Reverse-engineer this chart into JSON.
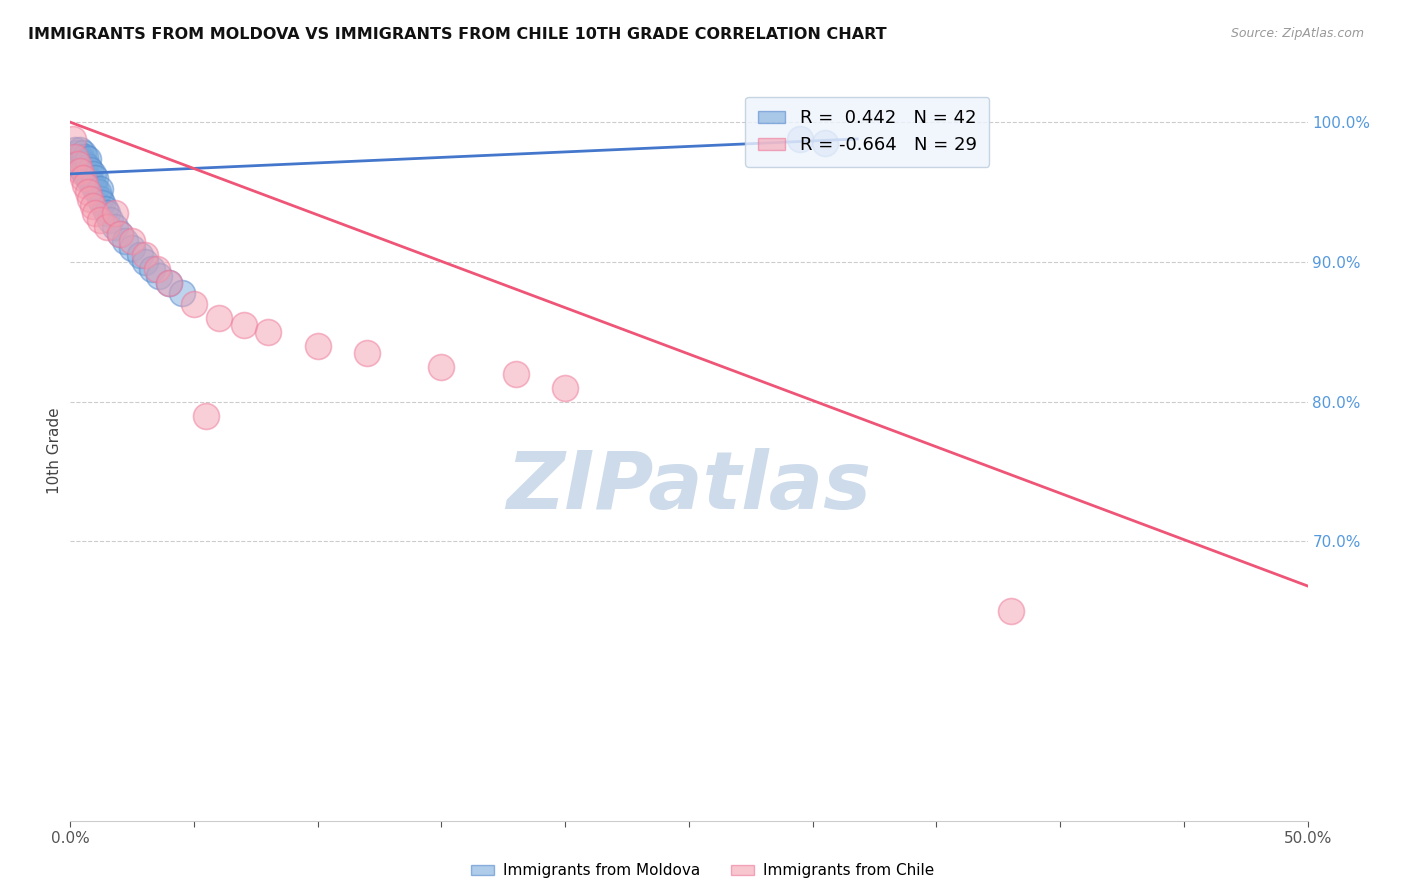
{
  "title": "IMMIGRANTS FROM MOLDOVA VS IMMIGRANTS FROM CHILE 10TH GRADE CORRELATION CHART",
  "source": "Source: ZipAtlas.com",
  "ylabel": "10th Grade",
  "xlim": [
    0.0,
    0.5
  ],
  "ylim": [
    0.5,
    1.03
  ],
  "xticks": [
    0.0,
    0.05,
    0.1,
    0.15,
    0.2,
    0.25,
    0.3,
    0.35,
    0.4,
    0.45,
    0.5
  ],
  "xtick_labels": [
    "0.0%",
    "",
    "",
    "",
    "",
    "",
    "",
    "",
    "",
    "",
    "50.0%"
  ],
  "yticks_right": [
    1.0,
    0.9,
    0.8,
    0.7
  ],
  "ytick_right_labels": [
    "100.0%",
    "90.0%",
    "80.0%",
    "70.0%"
  ],
  "moldova_color": "#7aabdc",
  "chile_color": "#f4a0b0",
  "moldova_edge_color": "#5588cc",
  "chile_edge_color": "#ee7799",
  "moldova_line_color": "#4477cc",
  "chile_line_color": "#ee5577",
  "moldova_R": 0.442,
  "moldova_N": 42,
  "chile_R": -0.664,
  "chile_N": 29,
  "watermark": "ZIPatlas",
  "watermark_color": "#c5d5e8",
  "legend_box_color": "#eef3fc",
  "legend_edge_color": "#bbccdd",
  "moldova_scatter_x": [
    0.001,
    0.002,
    0.002,
    0.003,
    0.003,
    0.004,
    0.004,
    0.004,
    0.005,
    0.005,
    0.005,
    0.006,
    0.006,
    0.006,
    0.007,
    0.007,
    0.007,
    0.008,
    0.008,
    0.009,
    0.009,
    0.01,
    0.01,
    0.011,
    0.012,
    0.012,
    0.013,
    0.014,
    0.015,
    0.016,
    0.018,
    0.02,
    0.022,
    0.025,
    0.028,
    0.03,
    0.033,
    0.036,
    0.04,
    0.045,
    0.295,
    0.305
  ],
  "moldova_scatter_y": [
    0.975,
    0.972,
    0.98,
    0.97,
    0.978,
    0.968,
    0.975,
    0.98,
    0.965,
    0.972,
    0.978,
    0.963,
    0.97,
    0.975,
    0.96,
    0.968,
    0.974,
    0.958,
    0.966,
    0.955,
    0.963,
    0.952,
    0.96,
    0.95,
    0.945,
    0.952,
    0.942,
    0.938,
    0.935,
    0.93,
    0.925,
    0.92,
    0.915,
    0.91,
    0.905,
    0.9,
    0.895,
    0.89,
    0.885,
    0.878,
    0.988,
    0.985
  ],
  "chile_scatter_x": [
    0.001,
    0.002,
    0.003,
    0.004,
    0.005,
    0.006,
    0.007,
    0.008,
    0.009,
    0.01,
    0.012,
    0.015,
    0.018,
    0.02,
    0.025,
    0.03,
    0.035,
    0.04,
    0.05,
    0.06,
    0.07,
    0.08,
    0.1,
    0.12,
    0.15,
    0.18,
    0.2,
    0.38,
    0.055
  ],
  "chile_scatter_y": [
    0.988,
    0.975,
    0.97,
    0.965,
    0.96,
    0.955,
    0.95,
    0.945,
    0.94,
    0.935,
    0.93,
    0.925,
    0.935,
    0.92,
    0.915,
    0.905,
    0.895,
    0.885,
    0.87,
    0.86,
    0.855,
    0.85,
    0.84,
    0.835,
    0.825,
    0.82,
    0.81,
    0.65,
    0.79
  ],
  "moldova_trend_x": [
    0.0,
    0.318
  ],
  "moldova_trend_y": [
    0.963,
    0.988
  ],
  "chile_trend_x": [
    0.0,
    0.5
  ],
  "chile_trend_y": [
    1.0,
    0.668
  ]
}
